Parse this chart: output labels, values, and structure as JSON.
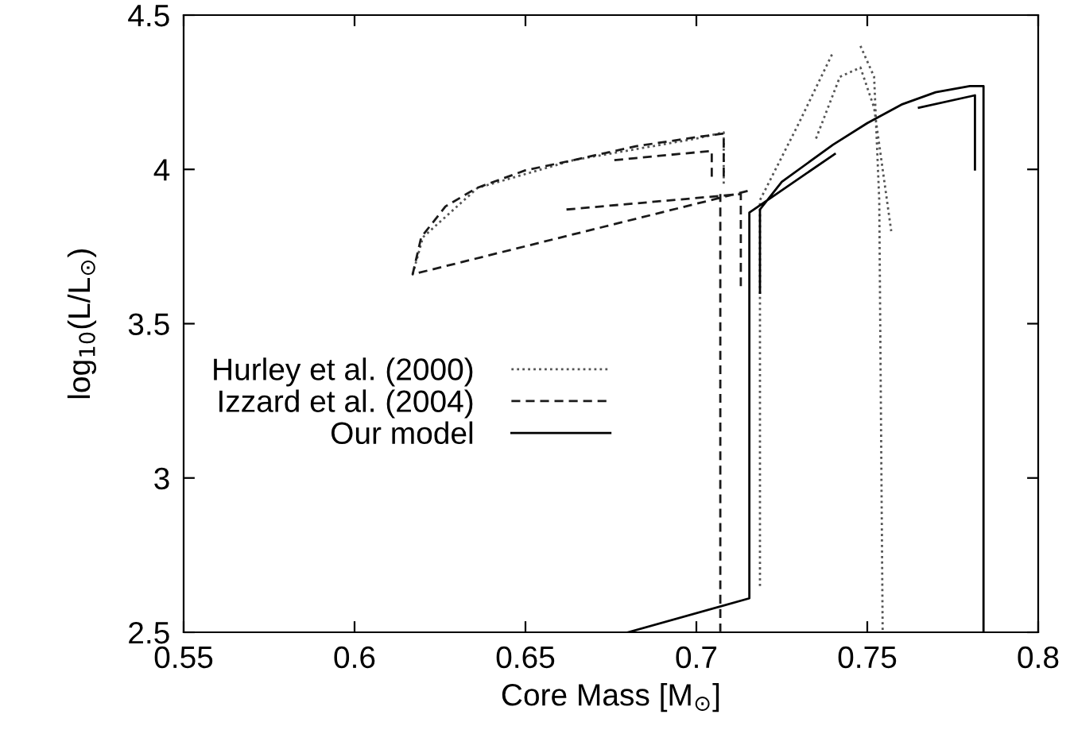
{
  "chart_data": {
    "type": "line",
    "xlabel": "Core Mass [M$_{⊙}$]",
    "ylabel": "log$_{10}$(L/L$_{⊙}$)",
    "xlim": [
      0.55,
      0.8
    ],
    "ylim": [
      2.5,
      4.5
    ],
    "xticks": [
      0.55,
      0.6,
      0.65,
      0.7,
      0.75,
      0.8
    ],
    "yticks": [
      2.5,
      3,
      3.5,
      4,
      4.5
    ],
    "legend": "left",
    "grid": false,
    "marker": "none",
    "series": [
      {
        "name": "Hurley et al. (2000)",
        "color": "#555555",
        "line_style": "dotted",
        "x": [
          0.617,
          0.62,
          0.636,
          0.664,
          0.7,
          0.708,
          0.708,
          null,
          0.7186,
          0.7186,
          0.7186,
          0.73,
          0.74,
          0.745,
          0.748,
          0.752,
          0.7535,
          0.7545,
          null,
          0.735,
          0.742,
          0.748,
          0.752,
          0.757
        ],
        "values": [
          3.66,
          3.78,
          3.94,
          4.03,
          4.1,
          4.12,
          3.95,
          null,
          2.65,
          3.0,
          3.9,
          4.15,
          4.38,
          null,
          4.4,
          4.3,
          3.9,
          2.5,
          null,
          4.1,
          4.3,
          4.33,
          4.2,
          3.8
        ]
      },
      {
        "name": "Izzard et al. (2004)",
        "color": "#1a1a1a",
        "line_style": "dashed",
        "x": [
          0.707,
          0.707,
          null,
          0.715,
          0.617,
          0.6195,
          0.6266,
          0.6358,
          0.65,
          0.664,
          0.6823,
          0.701,
          0.708,
          0.708,
          null,
          0.676,
          0.7045,
          0.7045,
          null,
          0.662,
          0.713,
          0.713
        ],
        "values": [
          2.5,
          3.92,
          null,
          3.93,
          3.66,
          3.78,
          3.88,
          3.94,
          3.997,
          4.03,
          4.075,
          4.106,
          4.116,
          3.96,
          null,
          4.03,
          4.06,
          3.96,
          null,
          3.87,
          3.92,
          3.62
        ]
      },
      {
        "name": "Our model",
        "color": "#000000",
        "line_style": "solid",
        "x": [
          0.68,
          0.7155,
          0.7155,
          0.7405,
          null,
          0.7186,
          0.7186,
          0.725,
          0.74,
          0.75,
          0.76,
          0.77,
          0.78,
          0.784,
          0.784,
          null,
          0.7651,
          0.7815,
          0.7815
        ],
        "values": [
          2.5,
          2.61,
          3.86,
          4.05,
          null,
          3.6,
          3.87,
          3.96,
          4.08,
          4.15,
          4.21,
          4.25,
          4.27,
          4.27,
          2.5,
          null,
          4.2,
          4.24,
          4.0
        ]
      }
    ]
  }
}
